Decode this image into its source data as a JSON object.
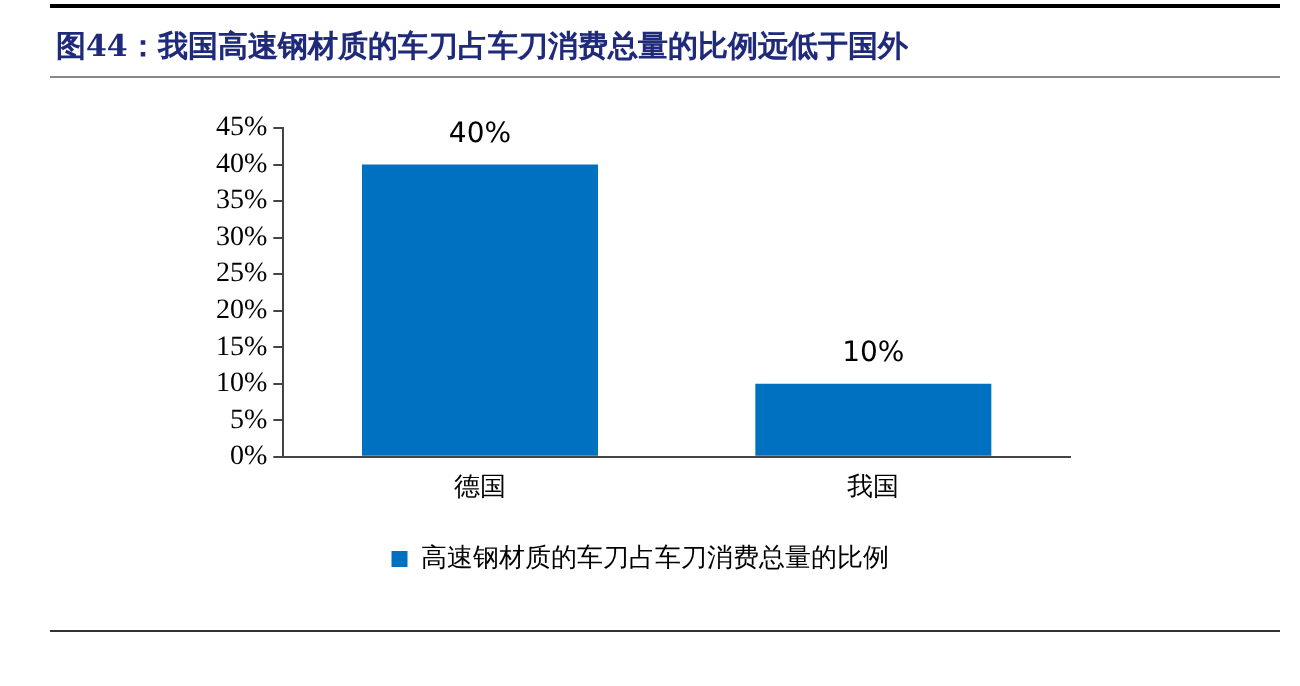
{
  "chart_data": {
    "type": "bar",
    "title": "图44：我国高速钢材质的车刀占车刀消费总量的比例远低于国外",
    "categories": [
      "德国",
      "我国"
    ],
    "series": [
      {
        "name": "高速钢材质的车刀占车刀消费总量的比例",
        "color": "#0070c0",
        "values": [
          40,
          10
        ],
        "value_labels": [
          "40%",
          "10%"
        ]
      }
    ],
    "ylim": [
      0,
      45
    ],
    "yticks": [
      {
        "value": 0,
        "label": "0%"
      },
      {
        "value": 5,
        "label": "5%"
      },
      {
        "value": 10,
        "label": "10%"
      },
      {
        "value": 15,
        "label": "15%"
      },
      {
        "value": 20,
        "label": "20%"
      },
      {
        "value": 25,
        "label": "25%"
      },
      {
        "value": 30,
        "label": "30%"
      },
      {
        "value": 35,
        "label": "35%"
      },
      {
        "value": 40,
        "label": "40%"
      },
      {
        "value": 45,
        "label": "45%"
      }
    ],
    "grid": false,
    "legend": "bottom"
  }
}
